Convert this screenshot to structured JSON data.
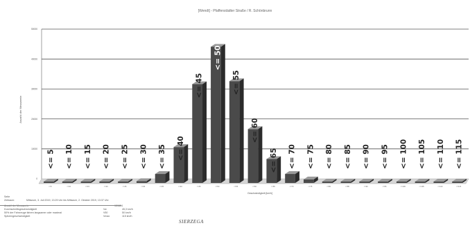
{
  "chart_data": {
    "type": "bar",
    "title": "[Wendt] - Pfaffenstädter Straße / R. Schönbrunn",
    "xlabel": "Geschwindigkeit [km/h]",
    "ylabel": "Anzahl der Messwerte",
    "ylim": [
      0,
      50000
    ],
    "yticks": [
      "0",
      "10000",
      "20000",
      "30000",
      "40000",
      "50000"
    ],
    "grid": true,
    "categories": [
      "<=5",
      "<=10",
      "<=15",
      "<=20",
      "<=25",
      "<=30",
      "<=35",
      "<=40",
      "<=45",
      "<=50",
      "<=55",
      "<=60",
      "<=65",
      "<=70",
      "<=75",
      "<=80",
      "<=85",
      "<=90",
      "<=95",
      "<=100",
      "<=105",
      "<=110",
      "<=115"
    ],
    "overlay_labels": [
      "<= 5",
      "<= 10",
      "<= 15",
      "<= 20",
      "<= 25",
      "<= 30",
      "<= 35",
      "<= 40",
      "<= 45",
      "<= 50",
      "<= 55",
      "<= 60",
      "<= 65",
      "<= 70",
      "<= 75",
      "<= 80",
      "<= 85",
      "<= 90",
      "<= 95",
      "<= 100",
      "<= 105",
      "<= 110",
      "<= 115"
    ],
    "values": [
      120,
      150,
      150,
      180,
      200,
      600,
      3000,
      12000,
      33000,
      45500,
      34000,
      18000,
      8000,
      3000,
      1200,
      300,
      150,
      100,
      80,
      60,
      50,
      40,
      30
    ],
    "colors": {
      "bar_front": "#4a4a4a",
      "bar_top": "#9a9a9a",
      "bar_side": "#2b2b2b",
      "floor": "#d6d6d6",
      "grid": "#555555"
    }
  },
  "stats": {
    "rows": [
      {
        "label": "Zeitraum:",
        "value": "Mittwoch, 3. Juli 2019, 13:29 Uhr bis Mittwoch, 2. Oktober 2019, 13:37 Uhr"
      },
      {
        "label": "Anzahl der Messwerte",
        "value": "159624"
      },
      {
        "label": "Durchschnittsgeschwindigkeit",
        "abbr": "Vø",
        "value": "45,3 km/h"
      },
      {
        "label": "50% der Fahrzeuge fahren langsamer oder maximal",
        "abbr": "V50",
        "value": "50 km/h"
      },
      {
        "label": "Spitzengeschwindigkeit",
        "abbr": "Vmax",
        "value": "115 km/h"
      }
    ],
    "header": "Seite"
  },
  "logo": "SIERZEGA"
}
